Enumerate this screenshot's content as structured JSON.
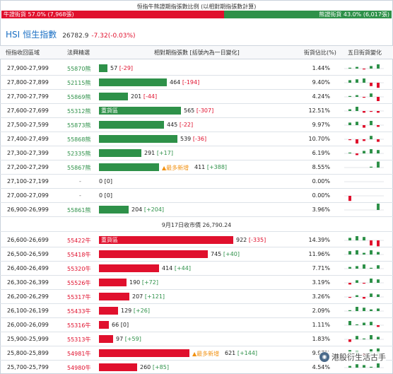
{
  "header": {
    "caption": "恒指牛熊證期指張數比例 (以相對期指張數計算)",
    "bull_label": "牛證街貨 57.0% (7,968張)",
    "bear_label": "熊證街貨 43.0% (6,017張)",
    "bull_ratio": 0.57,
    "bear_ratio": 0.43
  },
  "index": {
    "code": "HSI",
    "name": "恒生指數",
    "value": "26782.9",
    "change": "-7.32(-0.03%)"
  },
  "columns": {
    "range": "恒指收回區域",
    "code": "法興精選",
    "contracts": "相對期指張數 [括號內為一日變化]",
    "share": "街貨佔比(%)",
    "five_day": "五日街貨變化"
  },
  "separator": "9月17日收市價 26,790.24",
  "colors": {
    "bull": "#e0102d",
    "bear": "#2e9149",
    "tag": "#f29111"
  },
  "bear_rows": [
    {
      "range": "27,900-27,999",
      "code": "55870熊",
      "count": "57",
      "change": "[-29]",
      "share": "1.44%",
      "value": 57,
      "spark": [
        1,
        2,
        -1,
        3,
        5
      ]
    },
    {
      "range": "27,800-27,899",
      "code": "52115熊",
      "count": "464",
      "change": "[-194]",
      "share": "9.40%",
      "value": 464,
      "spark": [
        3,
        4,
        5,
        -4,
        -6
      ]
    },
    {
      "range": "27,700-27,799",
      "code": "55869熊",
      "count": "201",
      "change": "[-44]",
      "share": "4.24%",
      "value": 201,
      "spark": [
        1,
        2,
        -1,
        4,
        -5
      ]
    },
    {
      "range": "27,600-27,699",
      "code": "55312熊",
      "tag": "重貨區",
      "count": "565",
      "change": "[-307]",
      "share": "12.51%",
      "value": 565,
      "spark": [
        2,
        5,
        -2,
        -1,
        -2
      ]
    },
    {
      "range": "27,500-27,599",
      "code": "55873熊",
      "count": "445",
      "change": "[-22]",
      "share": "9.97%",
      "value": 445,
      "spark": [
        3,
        4,
        -3,
        5,
        -2
      ]
    },
    {
      "range": "27,400-27,499",
      "code": "55868熊",
      "count": "539",
      "change": "[-36]",
      "share": "10.70%",
      "value": 539,
      "spark": [
        -1,
        -5,
        -2,
        4,
        -3
      ]
    },
    {
      "range": "27,300-27,399",
      "code": "52335熊",
      "count": "291",
      "change": "[+17]",
      "share": "6.19%",
      "value": 291,
      "spark": [
        1,
        -2,
        3,
        5,
        4
      ]
    },
    {
      "range": "27,200-27,299",
      "code": "55867熊",
      "count": "411",
      "change": "[+388]",
      "share": "8.55%",
      "value": 411,
      "note": "▲最多新增",
      "spark": [
        0,
        0,
        0,
        1,
        7
      ]
    },
    {
      "range": "27,100-27,199",
      "code": "-",
      "count": "0",
      "change": "[0]",
      "share": "0.00%",
      "value": 0,
      "spark": [
        0,
        0,
        0,
        0,
        0
      ]
    },
    {
      "range": "27,000-27,099",
      "code": "-",
      "count": "0",
      "change": "[0]",
      "share": "0.00%",
      "value": 0,
      "spark": [
        -6,
        0,
        0,
        0,
        0
      ]
    },
    {
      "range": "26,900-26,999",
      "code": "55861熊",
      "count": "204",
      "change": "[+204]",
      "share": "3.96%",
      "value": 204,
      "spark": [
        0,
        0,
        0,
        0,
        8
      ]
    }
  ],
  "bull_rows": [
    {
      "range": "26,600-26,699",
      "code": "55422牛",
      "tag": "重貨區",
      "count": "922",
      "change": "[-335]",
      "share": "14.39%",
      "value": 922,
      "spark": [
        3,
        5,
        4,
        -6,
        -7
      ]
    },
    {
      "range": "26,500-26,599",
      "code": "55418牛",
      "count": "745",
      "change": "[+40]",
      "share": "11.96%",
      "value": 745,
      "spark": [
        4,
        5,
        2,
        5,
        3
      ]
    },
    {
      "range": "26,400-26,499",
      "code": "55320牛",
      "count": "414",
      "change": "[+44]",
      "share": "7.71%",
      "value": 414,
      "spark": [
        2,
        3,
        5,
        1,
        4
      ]
    },
    {
      "range": "26,300-26,399",
      "code": "55526牛",
      "count": "190",
      "change": "[+72]",
      "share": "3.19%",
      "value": 190,
      "spark": [
        -2,
        3,
        -1,
        5,
        4
      ]
    },
    {
      "range": "26,200-26,299",
      "code": "55317牛",
      "count": "207",
      "change": "[+121]",
      "share": "3.26%",
      "value": 207,
      "spark": [
        -1,
        2,
        -2,
        4,
        3
      ]
    },
    {
      "range": "26,100-26,199",
      "code": "55433牛",
      "count": "129",
      "change": "[+26]",
      "share": "2.09%",
      "value": 129,
      "spark": [
        1,
        5,
        4,
        2,
        3
      ]
    },
    {
      "range": "26,000-26,099",
      "code": "55316牛",
      "count": "66",
      "change": "[0]",
      "share": "1.11%",
      "value": 66,
      "spark": [
        5,
        1,
        3,
        4,
        -2
      ]
    },
    {
      "range": "25,900-25,999",
      "code": "55313牛",
      "count": "97",
      "change": "[+59]",
      "share": "1.83%",
      "value": 97,
      "spark": [
        -3,
        4,
        1,
        5,
        3
      ]
    },
    {
      "range": "25,800-25,899",
      "code": "54981牛",
      "count": "621",
      "change": "[+144]",
      "share": "9.97%",
      "value": 621,
      "note": "▲最多新增",
      "spark": [
        4,
        3,
        -2,
        5,
        6
      ]
    },
    {
      "range": "25,700-25,799",
      "code": "54980牛",
      "count": "260",
      "change": "[+85]",
      "share": "4.54%",
      "value": 260,
      "spark": [
        2,
        4,
        3,
        1,
        5
      ]
    }
  ],
  "watermark": "港股衍生活古手"
}
